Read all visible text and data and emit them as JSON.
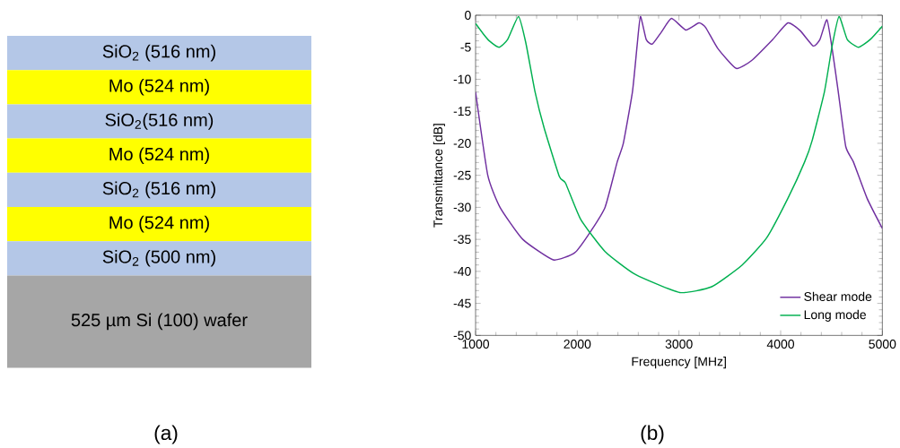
{
  "chart_data": [
    {
      "type": "other",
      "title": "(a)",
      "annotations": [
        "SiO$_{2}$ (516 nm)",
        "Mo (524 nm)",
        "SiO$_{2}$(516 nm)",
        "Mo (524 nm)",
        "SiO$_{2}$ (516 nm)",
        "Mo (524 nm)",
        "SiO$_{2}$ (500 nm)",
        "525 µm Si (100) wafer"
      ],
      "colors": [
        "#b4c7e7",
        "#ffff00",
        "#b4c7e7",
        "#ffff00",
        "#b4c7e7",
        "#ffff00",
        "#b4c7e7",
        "#a6a6a6"
      ]
    },
    {
      "type": "line",
      "title": "(b)",
      "xlabel": "Frequency [MHz]",
      "ylabel": "Transmittance [dB]",
      "xlim": [
        1000,
        5000
      ],
      "ylim": [
        -50,
        0
      ],
      "xticks": [
        1000,
        2000,
        3000,
        4000,
        5000
      ],
      "yticks": [
        -50,
        -45,
        -40,
        -35,
        -30,
        -25,
        -20,
        -15,
        -10,
        -5,
        0
      ],
      "legend": "bottom right",
      "grid": false,
      "marker": "none",
      "line_style": "solid",
      "series": [
        {
          "name": "Shear mode",
          "color": "#7030a0",
          "x": [
            1000,
            1120,
            1240,
            1464,
            1764,
            1974,
            2109,
            2273,
            2393,
            2453,
            2543,
            2588,
            2621,
            2678,
            2738,
            2828,
            2927,
            3067,
            3196,
            3262,
            3382,
            3562,
            3712,
            3921,
            4071,
            4191,
            4320,
            4386,
            4455,
            4506,
            4566,
            4640,
            4715,
            4850,
            5000
          ],
          "values": [
            -12,
            -25,
            -30,
            -35,
            -38.2,
            -37.1,
            -34.3,
            -30,
            -22.9,
            -20,
            -11.9,
            -4.8,
            -0.2,
            -3.8,
            -4.5,
            -2.6,
            -0.5,
            -2.3,
            -1.2,
            -1.9,
            -5.2,
            -8.3,
            -7.1,
            -3.8,
            -1.2,
            -2.4,
            -4.8,
            -3.8,
            -0.7,
            -5.2,
            -11.9,
            -20.5,
            -22.9,
            -28.6,
            -33.3
          ]
        },
        {
          "name": "Long mode",
          "color": "#00b050",
          "x": [
            1000,
            1075,
            1135,
            1231,
            1315,
            1422,
            1494,
            1584,
            1674,
            1824,
            1884,
            2034,
            2273,
            2573,
            3008,
            3322,
            3622,
            3861,
            4071,
            4236,
            4311,
            4431,
            4506,
            4574,
            4655,
            4766,
            4880,
            5000
          ],
          "values": [
            -1.3,
            -2.9,
            -4,
            -5,
            -3.8,
            -0.2,
            -4.3,
            -11.9,
            -17.6,
            -25.2,
            -26.2,
            -31.9,
            -36.9,
            -40.5,
            -43.3,
            -42.4,
            -39,
            -34.8,
            -28.6,
            -22.9,
            -19.5,
            -11.9,
            -4.8,
            -0.2,
            -3.8,
            -5,
            -3.8,
            -1.7
          ]
        }
      ]
    }
  ]
}
